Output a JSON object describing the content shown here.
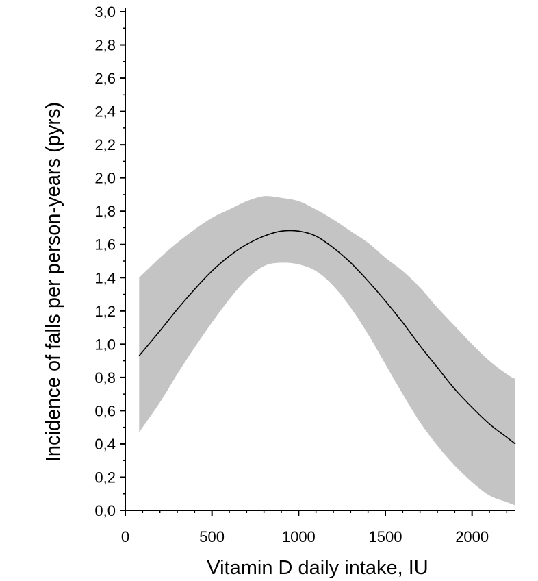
{
  "chart_data": {
    "type": "line",
    "title": "",
    "xlabel": "Vitamin D daily intake, IU",
    "ylabel": "Incidence of falls per person-years (pyrs)",
    "xlim": [
      0,
      2250
    ],
    "ylim": [
      0,
      3.0
    ],
    "x_ticks": [
      0,
      500,
      1000,
      1500,
      2000
    ],
    "x_tick_labels": [
      "0",
      "500",
      "1000",
      "1500",
      "2000"
    ],
    "y_ticks": [
      0,
      0.2,
      0.4,
      0.6,
      0.8,
      1.0,
      1.2,
      1.4,
      1.6,
      1.8,
      2.0,
      2.2,
      2.4,
      2.6,
      2.8,
      3.0
    ],
    "y_tick_labels": [
      "0,0",
      "0,2",
      "0,4",
      "0,6",
      "0,8",
      "1,0",
      "1,2",
      "1,4",
      "1,6",
      "1,8",
      "2,0",
      "2,2",
      "2,4",
      "2,6",
      "2,8",
      "3,0"
    ],
    "grid": false,
    "legend": "none",
    "series": [
      {
        "x": [
          80,
          200,
          300,
          400,
          500,
          600,
          700,
          800,
          900,
          1000,
          1100,
          1200,
          1300,
          1400,
          1500,
          1600,
          1700,
          1800,
          1900,
          2000,
          2100,
          2200,
          2250
        ],
        "values": [
          0.93,
          1.08,
          1.21,
          1.33,
          1.44,
          1.53,
          1.6,
          1.65,
          1.68,
          1.68,
          1.65,
          1.58,
          1.49,
          1.38,
          1.26,
          1.13,
          0.99,
          0.86,
          0.73,
          0.62,
          0.52,
          0.44,
          0.4
        ],
        "color": "#000000"
      }
    ],
    "confidence_band": {
      "x": [
        80,
        200,
        300,
        400,
        500,
        600,
        700,
        800,
        900,
        1000,
        1100,
        1200,
        1300,
        1400,
        1500,
        1600,
        1700,
        1800,
        1900,
        2000,
        2100,
        2200,
        2250
      ],
      "lower": [
        0.47,
        0.65,
        0.82,
        0.98,
        1.13,
        1.27,
        1.39,
        1.47,
        1.49,
        1.48,
        1.44,
        1.35,
        1.22,
        1.06,
        0.88,
        0.7,
        0.53,
        0.39,
        0.27,
        0.17,
        0.09,
        0.05,
        0.03
      ],
      "upper": [
        1.4,
        1.52,
        1.61,
        1.69,
        1.76,
        1.81,
        1.86,
        1.89,
        1.88,
        1.86,
        1.81,
        1.75,
        1.68,
        1.61,
        1.52,
        1.44,
        1.34,
        1.22,
        1.11,
        1.0,
        0.9,
        0.82,
        0.79
      ],
      "color": "#c4c4c4"
    },
    "axis_color": "#000000",
    "background": "#ffffff"
  }
}
